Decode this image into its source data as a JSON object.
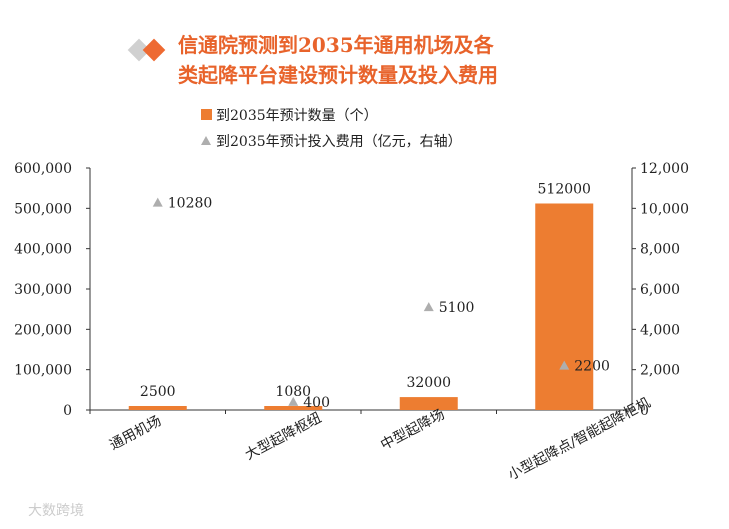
{
  "chart_data": {
    "type": "bar",
    "title": "信通院预测到2035年通用机场及各类起降平台建设预计数量及投入费用",
    "categories": [
      "通用机场",
      "大型起降枢纽",
      "中型起降场",
      "小型起降点/智能起降柜机"
    ],
    "series": [
      {
        "name": "到2035年预计数量（个）",
        "type": "bar",
        "axis": "left",
        "values": [
          2500,
          1080,
          32000,
          512000
        ],
        "color": "#ED7D31"
      },
      {
        "name": "到2035年预计投入费用（亿元，右轴）",
        "type": "scatter",
        "marker": "triangle",
        "axis": "right",
        "values": [
          10280,
          400,
          5100,
          2200
        ],
        "color": "#AEAEAE"
      }
    ],
    "left_axis": {
      "ylim": [
        0,
        600000
      ],
      "ticks": [
        "0",
        "100,000",
        "200,000",
        "300,000",
        "400,000",
        "500,000",
        "600,000"
      ]
    },
    "right_axis": {
      "ylim": [
        0,
        12000
      ],
      "ticks": [
        "0",
        "2,000",
        "4,000",
        "6,000",
        "8,000",
        "10,000",
        "12,000"
      ]
    },
    "legend": "top",
    "grid": false,
    "title_color": "#E8632B"
  },
  "watermark": "大数跨境"
}
